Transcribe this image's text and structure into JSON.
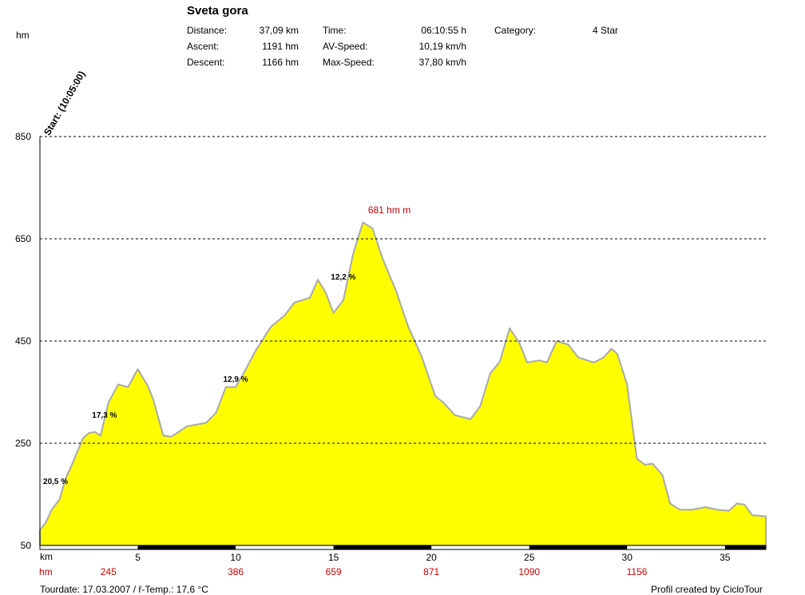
{
  "header": {
    "title": "Sveta gora",
    "stats": [
      {
        "label": "Distance:",
        "value": "37,09 km"
      },
      {
        "label": "Ascent:",
        "value": "1191 hm"
      },
      {
        "label": "Descent:",
        "value": "1166 hm"
      },
      {
        "label": "Time:",
        "value": "06:10:55 h"
      },
      {
        "label": "AV-Speed:",
        "value": "10,19 km/h"
      },
      {
        "label": "Max-Speed:",
        "value": "37,80 km/h"
      },
      {
        "label": "Category:",
        "value": "4 Star"
      }
    ]
  },
  "start_label": "Start: (10:05:00)",
  "footer": {
    "tour_info": "Tourdate: 17.03.2007  /  ř-Temp.: 17,6 °C",
    "credit": "Profil created by CicloTour"
  },
  "colors": {
    "fill": "#ffff00",
    "outline": "#a9a9a9",
    "grid": "#000000",
    "annotation": "#cc0000"
  },
  "chart_data": {
    "type": "area",
    "title": "Sveta gora",
    "ylabel": "hm",
    "xlabel": "km",
    "ylim": [
      50,
      850
    ],
    "xlim": [
      0,
      37.09
    ],
    "yticks": [
      50,
      250,
      450,
      650,
      850
    ],
    "xticks": [
      5,
      10,
      15,
      20,
      25,
      30,
      35
    ],
    "grid": true,
    "cumulative_hm_label": "hm",
    "cumulative_hm": [
      {
        "km": 3.5,
        "value": "245"
      },
      {
        "km": 10,
        "value": "386"
      },
      {
        "km": 15,
        "value": "659"
      },
      {
        "km": 20,
        "value": "871"
      },
      {
        "km": 25,
        "value": "1090"
      },
      {
        "km": 30.5,
        "value": "1156"
      }
    ],
    "gradients": [
      {
        "km": 0.8,
        "alt": 170,
        "label": "20,5 %"
      },
      {
        "km": 3.3,
        "alt": 300,
        "label": "17,3 %"
      },
      {
        "km": 10.0,
        "alt": 370,
        "label": "12,9 %"
      },
      {
        "km": 15.5,
        "alt": 570,
        "label": "12,2 %"
      }
    ],
    "peak_label": {
      "km": 16.6,
      "alt": 681,
      "text": "681 hm m"
    },
    "x": [
      0,
      0.3,
      0.6,
      1.0,
      1.3,
      1.6,
      2.2,
      2.5,
      2.8,
      3.1,
      3.5,
      4.0,
      4.5,
      5.0,
      5.5,
      5.8,
      6.3,
      6.7,
      7.0,
      7.5,
      8.5,
      9.0,
      9.5,
      10.0,
      10.5,
      11.0,
      11.8,
      12.5,
      13.0,
      13.8,
      14.2,
      14.6,
      15.0,
      15.5,
      16.0,
      16.5,
      17.0,
      17.5,
      18.2,
      18.8,
      19.5,
      20.2,
      20.6,
      21.2,
      22.0,
      22.5,
      23.0,
      23.5,
      24.0,
      24.5,
      24.9,
      25.5,
      25.9,
      26.4,
      27.0,
      27.5,
      28.3,
      28.8,
      29.2,
      29.5,
      30.0,
      30.5,
      30.9,
      31.3,
      31.8,
      32.2,
      32.7,
      33.3,
      34.0,
      34.6,
      35.2,
      35.6,
      36.0,
      36.4,
      37.09
    ],
    "y": [
      80,
      95,
      120,
      140,
      180,
      205,
      260,
      270,
      272,
      265,
      330,
      365,
      360,
      395,
      363,
      335,
      265,
      263,
      270,
      283,
      290,
      310,
      360,
      360,
      393,
      430,
      478,
      500,
      525,
      535,
      570,
      545,
      505,
      530,
      620,
      682,
      670,
      612,
      548,
      480,
      420,
      342,
      330,
      305,
      297,
      323,
      386,
      410,
      475,
      446,
      408,
      412,
      408,
      450,
      443,
      418,
      408,
      418,
      435,
      425,
      365,
      220,
      208,
      210,
      188,
      132,
      120,
      120,
      125,
      120,
      118,
      132,
      130,
      109,
      107
    ]
  }
}
